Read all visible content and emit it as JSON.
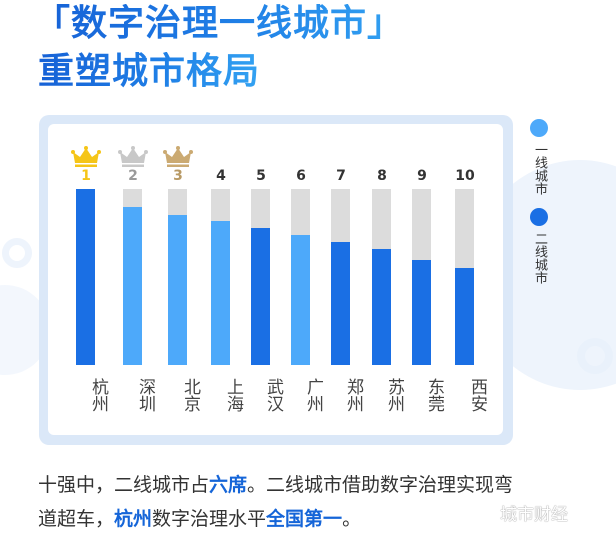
{
  "title": {
    "line1": "「数字治理一线城市」",
    "line2": "重塑城市格局"
  },
  "colors": {
    "tier1": "#4DA9FA",
    "tier2": "#1A6FE4",
    "track": "#DCDCDC",
    "gold": "#F5C518",
    "silver": "#C8C8C8",
    "bronze": "#CBAA72",
    "highlight": "#1565D8"
  },
  "legend": [
    {
      "label": "一线城市",
      "color": "#4DA9FA"
    },
    {
      "label": "二线城市",
      "color": "#1A6FE4"
    }
  ],
  "chart_data": {
    "type": "bar",
    "title": "「数字治理一线城市」重塑城市格局",
    "xlabel": "",
    "ylabel": "",
    "categories": [
      "杭州",
      "深圳",
      "北京",
      "上海",
      "武汉",
      "广州",
      "郑州",
      "苏州",
      "东莞",
      "西安"
    ],
    "ranks": [
      "1",
      "2",
      "3",
      "4",
      "5",
      "6",
      "7",
      "8",
      "9",
      "10"
    ],
    "values": [
      100,
      89.8,
      85.2,
      81.8,
      77.8,
      73.9,
      69.9,
      65.9,
      59.7,
      55.1
    ],
    "tiers": [
      "二线城市",
      "一线城市",
      "一线城市",
      "一线城市",
      "二线城市",
      "一线城市",
      "二线城市",
      "二线城市",
      "二线城市",
      "二线城市"
    ],
    "legend": [
      "一线城市",
      "二线城市"
    ],
    "legend_position": "right",
    "ylim": [
      0,
      100
    ],
    "grid": false,
    "annotations": [
      "crown-gold rank 1",
      "crown-silver rank 2",
      "crown-bronze rank 3"
    ]
  },
  "bars": [
    {
      "rank": "1",
      "city": "杭州",
      "value": 100,
      "color": "#1A6FE4",
      "rank_color": "#F5C518",
      "crown": "#F5C518"
    },
    {
      "rank": "2",
      "city": "深圳",
      "value": 89.8,
      "color": "#4DA9FA",
      "rank_color": "#9a9a9a",
      "crown": "#C8C8C8"
    },
    {
      "rank": "3",
      "city": "北京",
      "value": 85.2,
      "color": "#4DA9FA",
      "rank_color": "#B89A66",
      "crown": "#CBAA72"
    },
    {
      "rank": "4",
      "city": "上海",
      "value": 81.8,
      "color": "#4DA9FA",
      "rank_color": "#333333",
      "crown": null
    },
    {
      "rank": "5",
      "city": "武汉",
      "value": 77.8,
      "color": "#1A6FE4",
      "rank_color": "#333333",
      "crown": null
    },
    {
      "rank": "6",
      "city": "广州",
      "value": 73.9,
      "color": "#4DA9FA",
      "rank_color": "#333333",
      "crown": null
    },
    {
      "rank": "7",
      "city": "郑州",
      "value": 69.9,
      "color": "#1A6FE4",
      "rank_color": "#333333",
      "crown": null
    },
    {
      "rank": "8",
      "city": "苏州",
      "value": 65.9,
      "color": "#1A6FE4",
      "rank_color": "#333333",
      "crown": null
    },
    {
      "rank": "9",
      "city": "东莞",
      "value": 59.7,
      "color": "#1A6FE4",
      "rank_color": "#333333",
      "crown": null
    },
    {
      "rank": "10",
      "city": "西安",
      "value": 55.1,
      "color": "#1A6FE4",
      "rank_color": "#333333",
      "crown": null
    }
  ],
  "caption": {
    "line1": [
      {
        "text": "十强中，二线城市占",
        "hl": false
      },
      {
        "text": "六席",
        "hl": true
      },
      {
        "text": "。二线城市借助数字治理实现弯",
        "hl": false
      }
    ],
    "line2": [
      {
        "text": "道超车，",
        "hl": false
      },
      {
        "text": "杭州",
        "hl": true
      },
      {
        "text": "数字治理水平",
        "hl": false
      },
      {
        "text": "全国第一",
        "hl": true
      },
      {
        "text": "。",
        "hl": false
      }
    ]
  },
  "watermark": "城市财经"
}
